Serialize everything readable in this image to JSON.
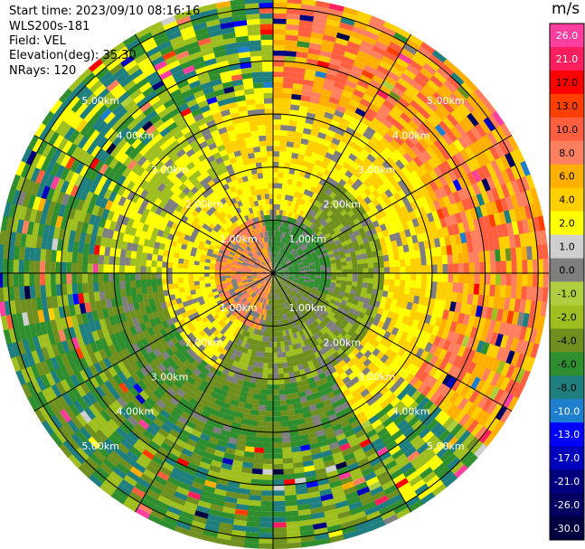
{
  "header": {
    "start_time": "Start time: 2023/09/10 08:16:16",
    "instrument": "WLS200s-181",
    "field": "Field: VEL",
    "elevation": "Elevation(deg): 35.30",
    "nrays": "NRays: 120"
  },
  "colorbar": {
    "unit": "m/s",
    "ticks": [
      "26.0",
      "21.0",
      "17.0",
      "13.0",
      "10.0",
      "8.0",
      "6.0",
      "4.0",
      "2.0",
      "1.0",
      "0.0",
      "-1.0",
      "-2.0",
      "-4.0",
      "-6.0",
      "-8.0",
      "-10.0",
      "-13.0",
      "-17.0",
      "-21.0",
      "-26.0",
      "-30.0"
    ],
    "colors": [
      "#ff3fa0",
      "#ff1f5f",
      "#ff0000",
      "#ff3f00",
      "#ff5f3f",
      "#ff7f5f",
      "#ffaf00",
      "#ffcf00",
      "#ffff00",
      "#cfcfcf",
      "#7f7f7f",
      "#afcf3f",
      "#9fbf1f",
      "#6f8f1f",
      "#2f8f2f",
      "#1f7f7f",
      "#1f7fcf",
      "#0000ff",
      "#0000bf",
      "#00007f",
      "#000060",
      "#000040"
    ]
  },
  "chart_data": {
    "type": "heatmap",
    "title": "",
    "projection": "polar PPI",
    "field": "VEL",
    "units": "m/s",
    "n_rays": 120,
    "elevation_deg": 35.3,
    "range_ring_labels": [
      "1.00km",
      "2.00km",
      "3.00km",
      "4.00km",
      "5.00km"
    ],
    "range_rings_km": [
      1,
      2,
      3,
      4,
      5
    ],
    "max_range_km": 5.2,
    "spoke_angles_deg": [
      0,
      30,
      60,
      90,
      120,
      150,
      180,
      210,
      240,
      270,
      300,
      330
    ],
    "color_scale_min": -30,
    "color_scale_max": 30
  }
}
